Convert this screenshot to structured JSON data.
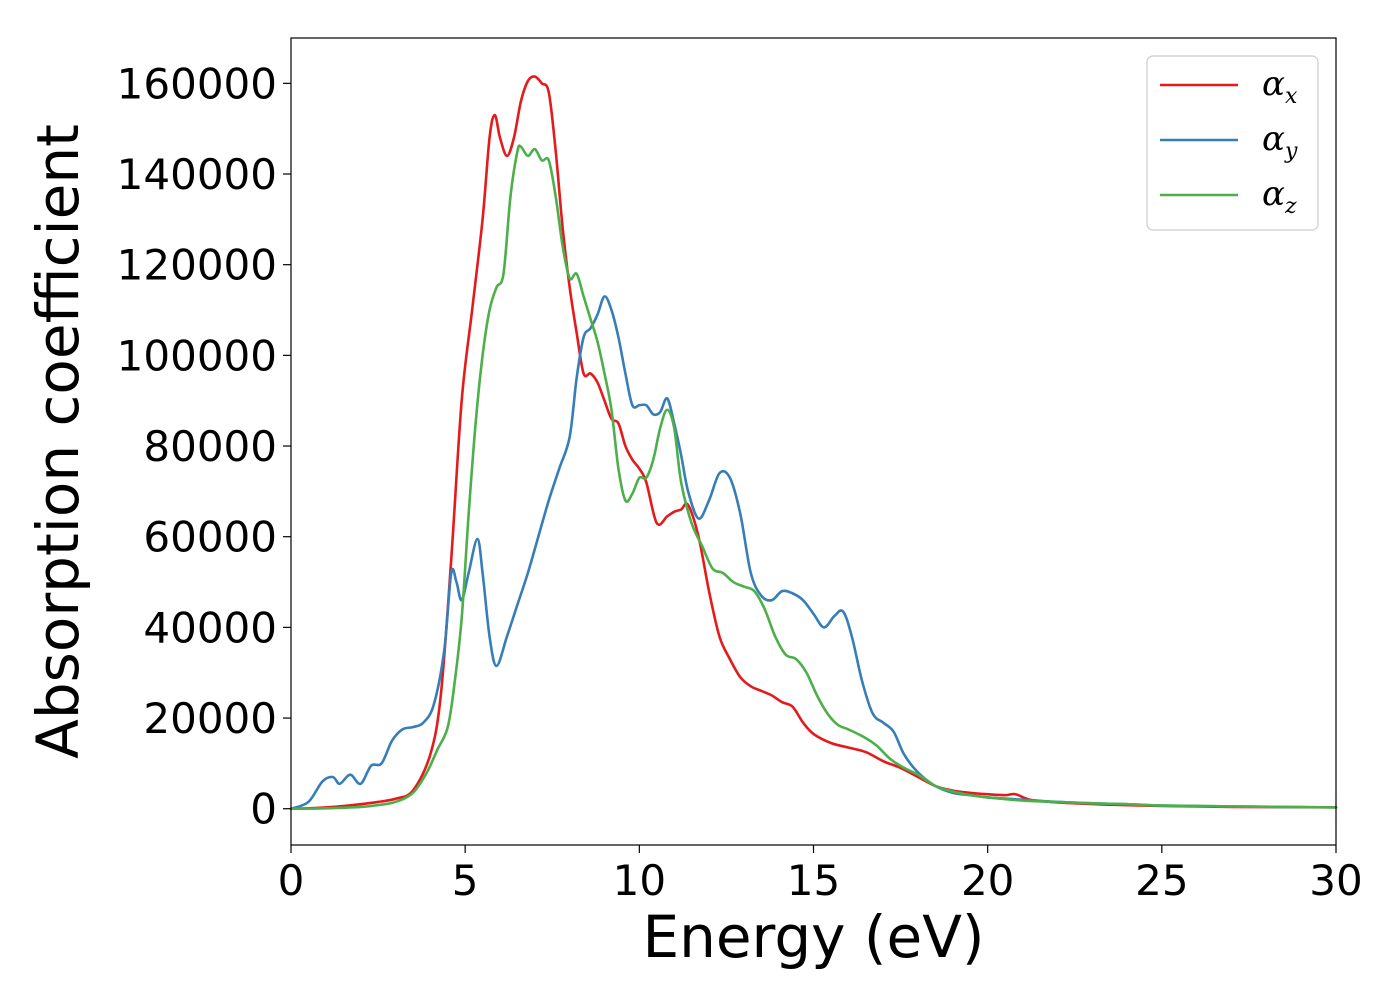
{
  "chart_data": {
    "type": "line",
    "xlabel": "Energy (eV)",
    "ylabel": "Absorption coefficient",
    "xlim": [
      0,
      30
    ],
    "ylim": [
      -8000,
      170000
    ],
    "xticks": [
      0,
      5,
      10,
      15,
      20,
      25,
      30
    ],
    "yticks": [
      0,
      20000,
      40000,
      60000,
      80000,
      100000,
      120000,
      140000,
      160000
    ],
    "grid": false,
    "legend_position": "top-right",
    "series": [
      {
        "name": "α_x",
        "symbol": "α",
        "subscript": "x",
        "color": "#e41a1c",
        "points": [
          [
            0,
            0
          ],
          [
            0.5,
            100
          ],
          [
            1,
            300
          ],
          [
            1.5,
            600
          ],
          [
            2,
            1000
          ],
          [
            2.5,
            1500
          ],
          [
            3,
            2200
          ],
          [
            3.5,
            4000
          ],
          [
            4,
            12000
          ],
          [
            4.3,
            25000
          ],
          [
            4.6,
            55000
          ],
          [
            4.9,
            90000
          ],
          [
            5.2,
            110000
          ],
          [
            5.5,
            130000
          ],
          [
            5.7,
            148000
          ],
          [
            5.85,
            153000
          ],
          [
            6.0,
            148000
          ],
          [
            6.2,
            144000
          ],
          [
            6.4,
            148000
          ],
          [
            6.6,
            156000
          ],
          [
            6.8,
            160500
          ],
          [
            7.0,
            161500
          ],
          [
            7.2,
            160000
          ],
          [
            7.4,
            158000
          ],
          [
            7.6,
            145000
          ],
          [
            7.8,
            128000
          ],
          [
            8.0,
            115000
          ],
          [
            8.2,
            105000
          ],
          [
            8.4,
            96000
          ],
          [
            8.6,
            96000
          ],
          [
            8.8,
            94000
          ],
          [
            9.0,
            90000
          ],
          [
            9.2,
            86000
          ],
          [
            9.4,
            85000
          ],
          [
            9.6,
            80000
          ],
          [
            9.8,
            77000
          ],
          [
            10.0,
            75000
          ],
          [
            10.2,
            72000
          ],
          [
            10.5,
            63000
          ],
          [
            10.8,
            64500
          ],
          [
            11.0,
            65500
          ],
          [
            11.2,
            66000
          ],
          [
            11.4,
            67000
          ],
          [
            11.7,
            60000
          ],
          [
            12.0,
            48000
          ],
          [
            12.3,
            38000
          ],
          [
            12.6,
            33000
          ],
          [
            12.9,
            29000
          ],
          [
            13.2,
            27000
          ],
          [
            13.5,
            26000
          ],
          [
            13.8,
            25000
          ],
          [
            14.1,
            23500
          ],
          [
            14.4,
            22500
          ],
          [
            14.7,
            19000
          ],
          [
            15.0,
            16500
          ],
          [
            15.5,
            14500
          ],
          [
            16.0,
            13500
          ],
          [
            16.5,
            12500
          ],
          [
            17.0,
            10500
          ],
          [
            17.5,
            9000
          ],
          [
            18.0,
            7000
          ],
          [
            18.5,
            5000
          ],
          [
            19.0,
            4000
          ],
          [
            19.5,
            3500
          ],
          [
            20.0,
            3200
          ],
          [
            20.5,
            3000
          ],
          [
            20.8,
            3200
          ],
          [
            21.2,
            2000
          ],
          [
            21.8,
            1500
          ],
          [
            22.5,
            1200
          ],
          [
            23.5,
            900
          ],
          [
            25,
            600
          ],
          [
            27,
            400
          ],
          [
            30,
            300
          ]
        ]
      },
      {
        "name": "α_y",
        "symbol": "α",
        "subscript": "y",
        "color": "#377eb8",
        "points": [
          [
            0,
            0
          ],
          [
            0.5,
            1500
          ],
          [
            0.9,
            6000
          ],
          [
            1.2,
            7000
          ],
          [
            1.4,
            5500
          ],
          [
            1.7,
            7500
          ],
          [
            2.0,
            5500
          ],
          [
            2.3,
            9500
          ],
          [
            2.6,
            10000
          ],
          [
            2.9,
            15000
          ],
          [
            3.2,
            17500
          ],
          [
            3.5,
            18000
          ],
          [
            3.8,
            19000
          ],
          [
            4.1,
            23000
          ],
          [
            4.4,
            35000
          ],
          [
            4.6,
            52000
          ],
          [
            4.75,
            50000
          ],
          [
            4.9,
            46000
          ],
          [
            5.1,
            52000
          ],
          [
            5.35,
            59500
          ],
          [
            5.5,
            52000
          ],
          [
            5.7,
            38000
          ],
          [
            5.9,
            31500
          ],
          [
            6.2,
            38000
          ],
          [
            6.5,
            45000
          ],
          [
            6.8,
            52000
          ],
          [
            7.1,
            60000
          ],
          [
            7.4,
            68000
          ],
          [
            7.7,
            75000
          ],
          [
            8.0,
            82000
          ],
          [
            8.2,
            95000
          ],
          [
            8.4,
            104000
          ],
          [
            8.6,
            106000
          ],
          [
            8.8,
            109000
          ],
          [
            9.0,
            113000
          ],
          [
            9.2,
            110000
          ],
          [
            9.4,
            104000
          ],
          [
            9.6,
            96000
          ],
          [
            9.8,
            89000
          ],
          [
            10.0,
            89000
          ],
          [
            10.2,
            89000
          ],
          [
            10.4,
            87000
          ],
          [
            10.6,
            87500
          ],
          [
            10.8,
            90500
          ],
          [
            11.0,
            85000
          ],
          [
            11.2,
            78000
          ],
          [
            11.4,
            70000
          ],
          [
            11.7,
            64000
          ],
          [
            12.0,
            68000
          ],
          [
            12.3,
            74000
          ],
          [
            12.6,
            73000
          ],
          [
            12.9,
            65000
          ],
          [
            13.2,
            52000
          ],
          [
            13.5,
            47000
          ],
          [
            13.8,
            46000
          ],
          [
            14.1,
            48000
          ],
          [
            14.4,
            47500
          ],
          [
            14.7,
            46000
          ],
          [
            15.0,
            43000
          ],
          [
            15.3,
            40000
          ],
          [
            15.6,
            42500
          ],
          [
            15.85,
            43500
          ],
          [
            16.1,
            38000
          ],
          [
            16.4,
            28000
          ],
          [
            16.7,
            21000
          ],
          [
            17.0,
            19000
          ],
          [
            17.3,
            17000
          ],
          [
            17.6,
            12000
          ],
          [
            18.0,
            8000
          ],
          [
            18.5,
            5000
          ],
          [
            19.0,
            3500
          ],
          [
            19.5,
            3000
          ],
          [
            20.0,
            2500
          ],
          [
            21.0,
            2000
          ],
          [
            22.0,
            1500
          ],
          [
            23.0,
            1200
          ],
          [
            24.0,
            1000
          ],
          [
            25,
            700
          ],
          [
            27,
            500
          ],
          [
            30,
            300
          ]
        ]
      },
      {
        "name": "α_z",
        "symbol": "α",
        "subscript": "z",
        "color": "#4daf4a",
        "points": [
          [
            0,
            0
          ],
          [
            1,
            100
          ],
          [
            2,
            400
          ],
          [
            2.5,
            800
          ],
          [
            3,
            1500
          ],
          [
            3.5,
            3500
          ],
          [
            3.9,
            8000
          ],
          [
            4.2,
            13000
          ],
          [
            4.5,
            18000
          ],
          [
            4.7,
            28000
          ],
          [
            4.9,
            42000
          ],
          [
            5.1,
            65000
          ],
          [
            5.3,
            85000
          ],
          [
            5.5,
            100000
          ],
          [
            5.7,
            110000
          ],
          [
            5.9,
            115000
          ],
          [
            6.1,
            118000
          ],
          [
            6.3,
            135000
          ],
          [
            6.5,
            145000
          ],
          [
            6.6,
            146000
          ],
          [
            6.8,
            144000
          ],
          [
            7.0,
            145500
          ],
          [
            7.2,
            143000
          ],
          [
            7.4,
            143000
          ],
          [
            7.6,
            135000
          ],
          [
            7.8,
            124000
          ],
          [
            8.0,
            117000
          ],
          [
            8.2,
            118000
          ],
          [
            8.4,
            113000
          ],
          [
            8.6,
            108000
          ],
          [
            8.8,
            103000
          ],
          [
            9.0,
            96000
          ],
          [
            9.2,
            88000
          ],
          [
            9.4,
            75000
          ],
          [
            9.6,
            68000
          ],
          [
            9.8,
            69500
          ],
          [
            10.0,
            73000
          ],
          [
            10.2,
            73000
          ],
          [
            10.4,
            77000
          ],
          [
            10.6,
            84000
          ],
          [
            10.8,
            88000
          ],
          [
            11.0,
            84000
          ],
          [
            11.2,
            72000
          ],
          [
            11.5,
            63000
          ],
          [
            11.8,
            58000
          ],
          [
            12.1,
            53000
          ],
          [
            12.4,
            52000
          ],
          [
            12.7,
            50000
          ],
          [
            13.0,
            49000
          ],
          [
            13.3,
            48000
          ],
          [
            13.6,
            44000
          ],
          [
            13.9,
            38000
          ],
          [
            14.2,
            34000
          ],
          [
            14.5,
            33000
          ],
          [
            14.8,
            30000
          ],
          [
            15.1,
            25000
          ],
          [
            15.4,
            21000
          ],
          [
            15.7,
            18500
          ],
          [
            16.0,
            17500
          ],
          [
            16.4,
            16000
          ],
          [
            16.8,
            14000
          ],
          [
            17.2,
            11000
          ],
          [
            17.6,
            9000
          ],
          [
            18.0,
            7500
          ],
          [
            18.5,
            5000
          ],
          [
            19.0,
            3800
          ],
          [
            19.5,
            3000
          ],
          [
            20.0,
            2500
          ],
          [
            21.0,
            1800
          ],
          [
            22.0,
            1500
          ],
          [
            23.0,
            1200
          ],
          [
            24.0,
            1000
          ],
          [
            25,
            700
          ],
          [
            27,
            500
          ],
          [
            30,
            300
          ]
        ]
      }
    ]
  }
}
